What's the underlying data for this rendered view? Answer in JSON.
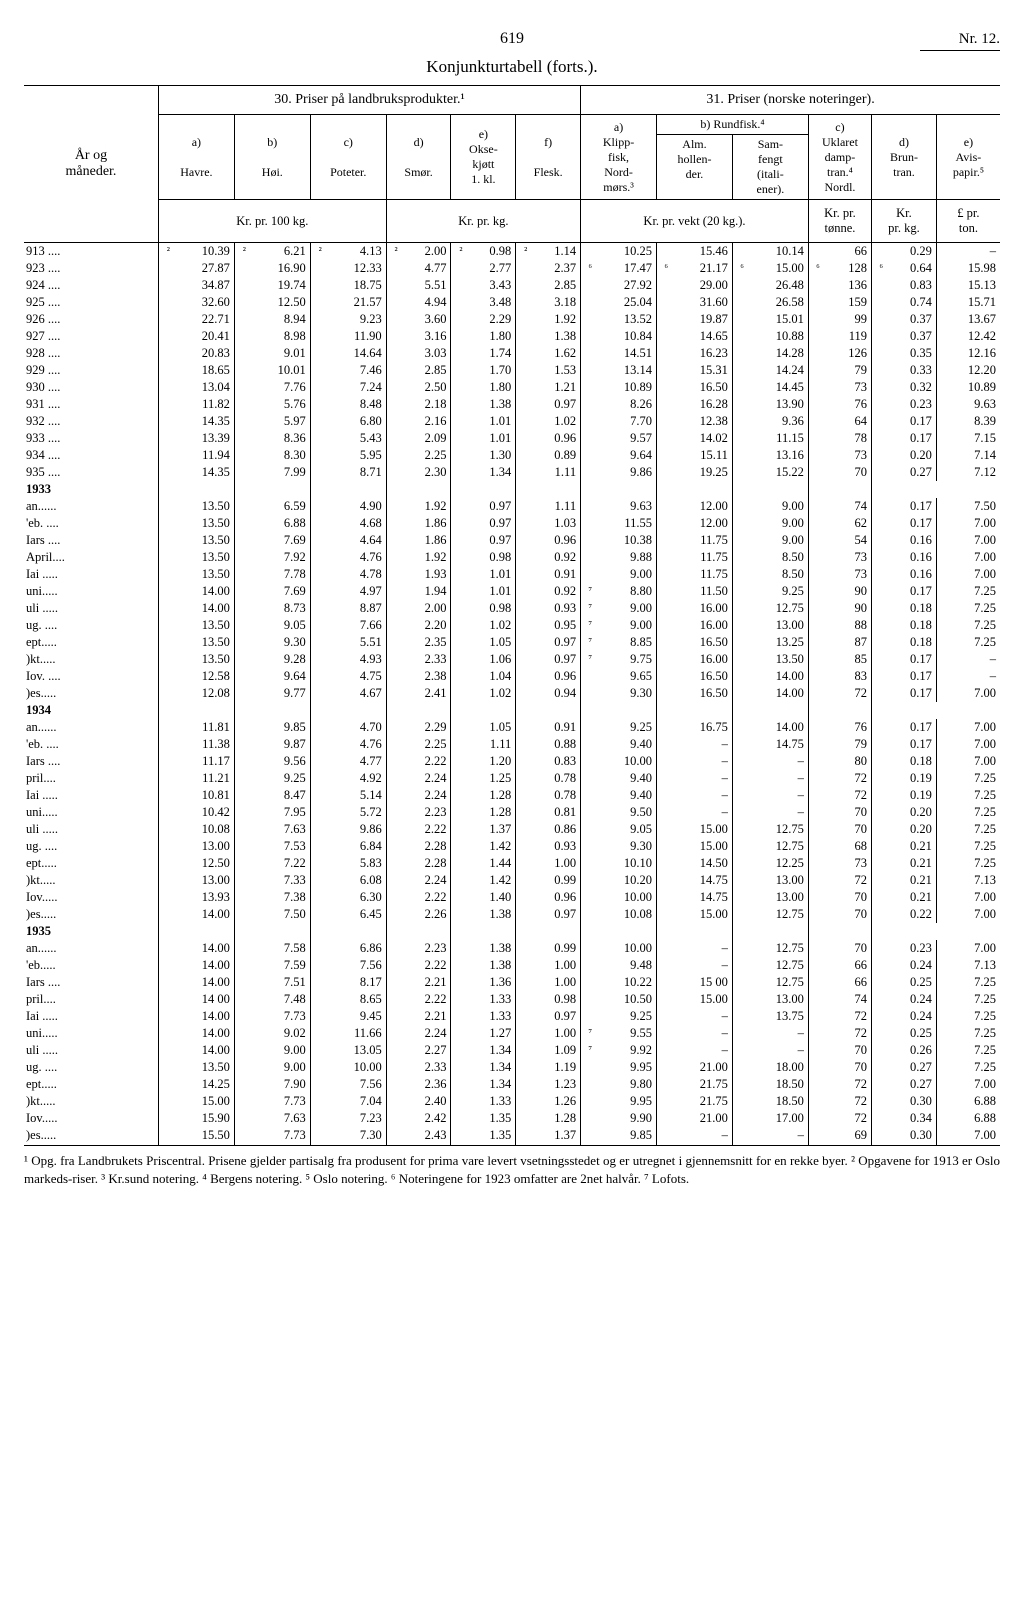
{
  "page": {
    "number": "619",
    "corner": "Nr. 12."
  },
  "subtitle": "Konjunkturtabell (forts.).",
  "section_headers": {
    "s30": "30. Priser på landbruksprodukter.¹",
    "s31": "31.  Priser (norske noteringer)."
  },
  "row_header": {
    "line1": "År og",
    "line2": "måneder."
  },
  "col_letters": {
    "a": "a)",
    "b": "b)",
    "c": "c)",
    "d": "d)",
    "e": "e)",
    "f": "f)",
    "a2": "a)",
    "b2": "b) Rundfisk.⁴",
    "c2": "c)",
    "d2": "d)",
    "e2": "e)"
  },
  "col_labels": {
    "havre": "Havre.",
    "hoi": "Høi.",
    "poteter": "Poteter.",
    "smor": "Smør.",
    "oksekjott": "Okse-\nkjøtt\n1. kl.",
    "flesk": "Flesk.",
    "klipp": "Klipp-\nfisk,\nNord-\nmørs.³",
    "alm": "Alm.\nhollen-\nder.",
    "sam": "Sam-\nfengt\n(itali-\nener).",
    "uklaret": "Uklaret\ndamp-\ntran.⁴\nNordl.",
    "brun": "Brun-\ntran.",
    "avis": "Avis-\npapir.⁵"
  },
  "unit_labels": {
    "u1": "Kr. pr. 100 kg.",
    "u2": "Kr. pr. kg.",
    "u3": "Kr. pr. vekt (20 kg.).",
    "u4": "Kr. pr.\ntønne.",
    "u5": "Kr.\npr. kg.",
    "u6": "£ pr.\nton."
  },
  "rows": [
    {
      "label": "913 ....",
      "p1": "²",
      "c1": "10.39",
      "p2": "²",
      "c2": "6.21",
      "p3": "²",
      "c3": "4.13",
      "p4": "²",
      "c4": "2.00",
      "p5": "²",
      "c5": "0.98",
      "p6": "²",
      "c6": "1.14",
      "p7": "",
      "c7": "10.25",
      "p8": "",
      "c8": "15.46",
      "p9": "",
      "c9": "10.14",
      "p10": "",
      "c10": "66",
      "p11": "",
      "c11": "0.29",
      "c12": "–"
    },
    {
      "label": "923 ....",
      "c1": "27.87",
      "c2": "16.90",
      "c3": "12.33",
      "c4": "4.77",
      "c5": "2.77",
      "c6": "2.37",
      "p7": "⁶",
      "c7": "17.47",
      "p8": "⁶",
      "c8": "21.17",
      "p9": "⁶",
      "c9": "15.00",
      "p10": "⁶",
      "c10": "128",
      "p11": "⁶",
      "c11": "0.64",
      "c12": "15.98"
    },
    {
      "label": "924 ....",
      "c1": "34.87",
      "c2": "19.74",
      "c3": "18.75",
      "c4": "5.51",
      "c5": "3.43",
      "c6": "2.85",
      "c7": "27.92",
      "c8": "29.00",
      "c9": "26.48",
      "c10": "136",
      "c11": "0.83",
      "c12": "15.13"
    },
    {
      "label": "925 ....",
      "c1": "32.60",
      "c2": "12.50",
      "c3": "21.57",
      "c4": "4.94",
      "c5": "3.48",
      "c6": "3.18",
      "c7": "25.04",
      "c8": "31.60",
      "c9": "26.58",
      "c10": "159",
      "c11": "0.74",
      "c12": "15.71"
    },
    {
      "label": "926 ....",
      "c1": "22.71",
      "c2": "8.94",
      "c3": "9.23",
      "c4": "3.60",
      "c5": "2.29",
      "c6": "1.92",
      "c7": "13.52",
      "c8": "19.87",
      "c9": "15.01",
      "c10": "99",
      "c11": "0.37",
      "c12": "13.67"
    },
    {
      "label": "927 ....",
      "c1": "20.41",
      "c2": "8.98",
      "c3": "11.90",
      "c4": "3.16",
      "c5": "1.80",
      "c6": "1.38",
      "c7": "10.84",
      "c8": "14.65",
      "c9": "10.88",
      "c10": "119",
      "c11": "0.37",
      "c12": "12.42"
    },
    {
      "label": "928 ....",
      "c1": "20.83",
      "c2": "9.01",
      "c3": "14.64",
      "c4": "3.03",
      "c5": "1.74",
      "c6": "1.62",
      "c7": "14.51",
      "c8": "16.23",
      "c9": "14.28",
      "c10": "126",
      "c11": "0.35",
      "c12": "12.16"
    },
    {
      "label": "929 ....",
      "c1": "18.65",
      "c2": "10.01",
      "c3": "7.46",
      "c4": "2.85",
      "c5": "1.70",
      "c6": "1.53",
      "c7": "13.14",
      "c8": "15.31",
      "c9": "14.24",
      "c10": "79",
      "c11": "0.33",
      "c12": "12.20"
    },
    {
      "label": "930 ....",
      "c1": "13.04",
      "c2": "7.76",
      "c3": "7.24",
      "c4": "2.50",
      "c5": "1.80",
      "c6": "1.21",
      "c7": "10.89",
      "c8": "16.50",
      "c9": "14.45",
      "c10": "73",
      "c11": "0.32",
      "c12": "10.89"
    },
    {
      "label": "931 ....",
      "c1": "11.82",
      "c2": "5.76",
      "c3": "8.48",
      "c4": "2.18",
      "c5": "1.38",
      "c6": "0.97",
      "c7": "8.26",
      "c8": "16.28",
      "c9": "13.90",
      "c10": "76",
      "c11": "0.23",
      "c12": "9.63"
    },
    {
      "label": "932 ....",
      "c1": "14.35",
      "c2": "5.97",
      "c3": "6.80",
      "c4": "2.16",
      "c5": "1.01",
      "c6": "1.02",
      "c7": "7.70",
      "c8": "12.38",
      "c9": "9.36",
      "c10": "64",
      "c11": "0.17",
      "c12": "8.39"
    },
    {
      "label": "933 ....",
      "c1": "13.39",
      "c2": "8.36",
      "c3": "5.43",
      "c4": "2.09",
      "c5": "1.01",
      "c6": "0.96",
      "c7": "9.57",
      "c8": "14.02",
      "c9": "11.15",
      "c10": "78",
      "c11": "0.17",
      "c12": "7.15"
    },
    {
      "label": "934 ....",
      "c1": "11.94",
      "c2": "8.30",
      "c3": "5.95",
      "c4": "2.25",
      "c5": "1.30",
      "c6": "0.89",
      "c7": "9.64",
      "c8": "15.11",
      "c9": "13.16",
      "c10": "73",
      "c11": "0.20",
      "c12": "7.14"
    },
    {
      "label": "935 ....",
      "c1": "14.35",
      "c2": "7.99",
      "c3": "8.71",
      "c4": "2.30",
      "c5": "1.34",
      "c6": "1.11",
      "c7": "9.86",
      "c8": "19.25",
      "c9": "15.22",
      "c10": "70",
      "c11": "0.27",
      "c12": "7.12"
    },
    {
      "label": "1933",
      "bold": true
    },
    {
      "label": "an......",
      "c1": "13.50",
      "c2": "6.59",
      "c3": "4.90",
      "c4": "1.92",
      "c5": "0.97",
      "c6": "1.11",
      "c7": "9.63",
      "c8": "12.00",
      "c9": "9.00",
      "c10": "74",
      "c11": "0.17",
      "c12": "7.50"
    },
    {
      "label": "'eb. ....",
      "c1": "13.50",
      "c2": "6.88",
      "c3": "4.68",
      "c4": "1.86",
      "c5": "0.97",
      "c6": "1.03",
      "c7": "11.55",
      "c8": "12.00",
      "c9": "9.00",
      "c10": "62",
      "c11": "0.17",
      "c12": "7.00"
    },
    {
      "label": "Iars ....",
      "c1": "13.50",
      "c2": "7.69",
      "c3": "4.64",
      "c4": "1.86",
      "c5": "0.97",
      "c6": "0.96",
      "c7": "10.38",
      "c8": "11.75",
      "c9": "9.00",
      "c10": "54",
      "c11": "0.16",
      "c12": "7.00"
    },
    {
      "label": "April....",
      "c1": "13.50",
      "c2": "7.92",
      "c3": "4.76",
      "c4": "1.92",
      "c5": "0.98",
      "c6": "0.92",
      "c7": "9.88",
      "c8": "11.75",
      "c9": "8.50",
      "c10": "73",
      "c11": "0.16",
      "c12": "7.00"
    },
    {
      "label": "Iai .....",
      "c1": "13.50",
      "c2": "7.78",
      "c3": "4.78",
      "c4": "1.93",
      "c5": "1.01",
      "c6": "0.91",
      "c7": "9.00",
      "c8": "11.75",
      "c9": "8.50",
      "c10": "73",
      "c11": "0.16",
      "c12": "7.00"
    },
    {
      "label": "uni.....",
      "c1": "14.00",
      "c2": "7.69",
      "c3": "4.97",
      "c4": "1.94",
      "c5": "1.01",
      "c6": "0.92",
      "p7": "⁷",
      "c7": "8.80",
      "c8": "11.50",
      "c9": "9.25",
      "c10": "90",
      "c11": "0.17",
      "c12": "7.25"
    },
    {
      "label": "uli .....",
      "c1": "14.00",
      "c2": "8.73",
      "c3": "8.87",
      "c4": "2.00",
      "c5": "0.98",
      "c6": "0.93",
      "p7": "⁷",
      "c7": "9.00",
      "c8": "16.00",
      "c9": "12.75",
      "c10": "90",
      "c11": "0.18",
      "c12": "7.25"
    },
    {
      "label": "ug. ....",
      "c1": "13.50",
      "c2": "9.05",
      "c3": "7.66",
      "c4": "2.20",
      "c5": "1.02",
      "c6": "0.95",
      "p7": "⁷",
      "c7": "9.00",
      "c8": "16.00",
      "c9": "13.00",
      "c10": "88",
      "c11": "0.18",
      "c12": "7.25"
    },
    {
      "label": "ept.....",
      "c1": "13.50",
      "c2": "9.30",
      "c3": "5.51",
      "c4": "2.35",
      "c5": "1.05",
      "c6": "0.97",
      "p7": "⁷",
      "c7": "8.85",
      "c8": "16.50",
      "c9": "13.25",
      "c10": "87",
      "c11": "0.18",
      "c12": "7.25"
    },
    {
      "label": ")kt.....",
      "c1": "13.50",
      "c2": "9.28",
      "c3": "4.93",
      "c4": "2.33",
      "c5": "1.06",
      "c6": "0.97",
      "p7": "⁷",
      "c7": "9.75",
      "c8": "16.00",
      "c9": "13.50",
      "c10": "85",
      "c11": "0.17",
      "c12": "–"
    },
    {
      "label": "Iov. ....",
      "c1": "12.58",
      "c2": "9.64",
      "c3": "4.75",
      "c4": "2.38",
      "c5": "1.04",
      "c6": "0.96",
      "c7": "9.65",
      "c8": "16.50",
      "c9": "14.00",
      "c10": "83",
      "c11": "0.17",
      "c12": "–"
    },
    {
      "label": ")es.....",
      "c1": "12.08",
      "c2": "9.77",
      "c3": "4.67",
      "c4": "2.41",
      "c5": "1.02",
      "c6": "0.94",
      "c7": "9.30",
      "c8": "16.50",
      "c9": "14.00",
      "c10": "72",
      "c11": "0.17",
      "c12": "7.00"
    },
    {
      "label": "1934",
      "bold": true
    },
    {
      "label": "an......",
      "c1": "11.81",
      "c2": "9.85",
      "c3": "4.70",
      "c4": "2.29",
      "c5": "1.05",
      "c6": "0.91",
      "c7": "9.25",
      "c8": "16.75",
      "c9": "14.00",
      "c10": "76",
      "c11": "0.17",
      "c12": "7.00"
    },
    {
      "label": "'eb. ....",
      "c1": "11.38",
      "c2": "9.87",
      "c3": "4.76",
      "c4": "2.25",
      "c5": "1.11",
      "c6": "0.88",
      "c7": "9.40",
      "c8": "–",
      "c9": "14.75",
      "c10": "79",
      "c11": "0.17",
      "c12": "7.00"
    },
    {
      "label": "Iars ....",
      "c1": "11.17",
      "c2": "9.56",
      "c3": "4.77",
      "c4": "2.22",
      "c5": "1.20",
      "c6": "0.83",
      "c7": "10.00",
      "c8": "–",
      "c9": "–",
      "c10": "80",
      "c11": "0.18",
      "c12": "7.00"
    },
    {
      "label": "pril....",
      "c1": "11.21",
      "c2": "9.25",
      "c3": "4.92",
      "c4": "2.24",
      "c5": "1.25",
      "c6": "0.78",
      "c7": "9.40",
      "c8": "–",
      "c9": "–",
      "c10": "72",
      "c11": "0.19",
      "c12": "7.25"
    },
    {
      "label": "Iai .....",
      "c1": "10.81",
      "c2": "8.47",
      "c3": "5.14",
      "c4": "2.24",
      "c5": "1.28",
      "c6": "0.78",
      "c7": "9.40",
      "c8": "–",
      "c9": "–",
      "c10": "72",
      "c11": "0.19",
      "c12": "7.25"
    },
    {
      "label": "uni.....",
      "c1": "10.42",
      "c2": "7.95",
      "c3": "5.72",
      "c4": "2.23",
      "c5": "1.28",
      "c6": "0.81",
      "c7": "9.50",
      "c8": "–",
      "c9": "–",
      "c10": "70",
      "c11": "0.20",
      "c12": "7.25"
    },
    {
      "label": "uli .....",
      "c1": "10.08",
      "c2": "7.63",
      "c3": "9.86",
      "c4": "2.22",
      "c5": "1.37",
      "c6": "0.86",
      "c7": "9.05",
      "c8": "15.00",
      "c9": "12.75",
      "c10": "70",
      "c11": "0.20",
      "c12": "7.25"
    },
    {
      "label": "ug. ....",
      "c1": "13.00",
      "c2": "7.53",
      "c3": "6.84",
      "c4": "2.28",
      "c5": "1.42",
      "c6": "0.93",
      "c7": "9.30",
      "c8": "15.00",
      "c9": "12.75",
      "c10": "68",
      "c11": "0.21",
      "c12": "7.25"
    },
    {
      "label": "ept.....",
      "c1": "12.50",
      "c2": "7.22",
      "c3": "5.83",
      "c4": "2.28",
      "c5": "1.44",
      "c6": "1.00",
      "c7": "10.10",
      "c8": "14.50",
      "c9": "12.25",
      "c10": "73",
      "c11": "0.21",
      "c12": "7.25"
    },
    {
      "label": ")kt.....",
      "c1": "13.00",
      "c2": "7.33",
      "c3": "6.08",
      "c4": "2.24",
      "c5": "1.42",
      "c6": "0.99",
      "c7": "10.20",
      "c8": "14.75",
      "c9": "13.00",
      "c10": "72",
      "c11": "0.21",
      "c12": "7.13"
    },
    {
      "label": "Iov.....",
      "c1": "13.93",
      "c2": "7.38",
      "c3": "6.30",
      "c4": "2.22",
      "c5": "1.40",
      "c6": "0.96",
      "c7": "10.00",
      "c8": "14.75",
      "c9": "13.00",
      "c10": "70",
      "c11": "0.21",
      "c12": "7.00"
    },
    {
      "label": ")es.....",
      "c1": "14.00",
      "c2": "7.50",
      "c3": "6.45",
      "c4": "2.26",
      "c5": "1.38",
      "c6": "0.97",
      "c7": "10.08",
      "c8": "15.00",
      "c9": "12.75",
      "c10": "70",
      "c11": "0.22",
      "c12": "7.00"
    },
    {
      "label": "1935",
      "bold": true
    },
    {
      "label": "an......",
      "c1": "14.00",
      "c2": "7.58",
      "c3": "6.86",
      "c4": "2.23",
      "c5": "1.38",
      "c6": "0.99",
      "c7": "10.00",
      "c8": "–",
      "c9": "12.75",
      "c10": "70",
      "c11": "0.23",
      "c12": "7.00"
    },
    {
      "label": "'eb.....",
      "c1": "14.00",
      "c2": "7.59",
      "c3": "7.56",
      "c4": "2.22",
      "c5": "1.38",
      "c6": "1.00",
      "c7": "9.48",
      "c8": "–",
      "c9": "12.75",
      "c10": "66",
      "c11": "0.24",
      "c12": "7.13"
    },
    {
      "label": "Iars ....",
      "c1": "14.00",
      "c2": "7.51",
      "c3": "8.17",
      "c4": "2.21",
      "c5": "1.36",
      "c6": "1.00",
      "c7": "10.22",
      "c8": "15 00",
      "c9": "12.75",
      "c10": "66",
      "c11": "0.25",
      "c12": "7.25"
    },
    {
      "label": "pril....",
      "c1": "14 00",
      "c2": "7.48",
      "c3": "8.65",
      "c4": "2.22",
      "c5": "1.33",
      "c6": "0.98",
      "c7": "10.50",
      "c8": "15.00",
      "c9": "13.00",
      "c10": "74",
      "c11": "0.24",
      "c12": "7.25"
    },
    {
      "label": "Iai .....",
      "c1": "14.00",
      "c2": "7.73",
      "c3": "9.45",
      "c4": "2.21",
      "c5": "1.33",
      "c6": "0.97",
      "c7": "9.25",
      "c8": "–",
      "c9": "13.75",
      "c10": "72",
      "c11": "0.24",
      "c12": "7.25"
    },
    {
      "label": "uni.....",
      "c1": "14.00",
      "c2": "9.02",
      "c3": "11.66",
      "c4": "2.24",
      "c5": "1.27",
      "c6": "1.00",
      "p7": "⁷",
      "c7": "9.55",
      "c8": "–",
      "c9": "–",
      "c10": "72",
      "c11": "0.25",
      "c12": "7.25"
    },
    {
      "label": "uli .....",
      "c1": "14.00",
      "c2": "9.00",
      "c3": "13.05",
      "c4": "2.27",
      "c5": "1.34",
      "c6": "1.09",
      "p7": "⁷",
      "c7": "9.92",
      "c8": "–",
      "c9": "–",
      "c10": "70",
      "c11": "0.26",
      "c12": "7.25"
    },
    {
      "label": "ug. ....",
      "c1": "13.50",
      "c2": "9.00",
      "c3": "10.00",
      "c4": "2.33",
      "c5": "1.34",
      "c6": "1.19",
      "c7": "9.95",
      "c8": "21.00",
      "c9": "18.00",
      "c10": "70",
      "c11": "0.27",
      "c12": "7.25"
    },
    {
      "label": "ept.....",
      "c1": "14.25",
      "c2": "7.90",
      "c3": "7.56",
      "c4": "2.36",
      "c5": "1.34",
      "c6": "1.23",
      "c7": "9.80",
      "c8": "21.75",
      "c9": "18.50",
      "c10": "72",
      "c11": "0.27",
      "c12": "7.00"
    },
    {
      "label": ")kt.....",
      "c1": "15.00",
      "c2": "7.73",
      "c3": "7.04",
      "c4": "2.40",
      "c5": "1.33",
      "c6": "1.26",
      "c7": "9.95",
      "c8": "21.75",
      "c9": "18.50",
      "c10": "72",
      "c11": "0.30",
      "c12": "6.88"
    },
    {
      "label": "Iov.....",
      "c1": "15.90",
      "c2": "7.63",
      "c3": "7.23",
      "c4": "2.42",
      "c5": "1.35",
      "c6": "1.28",
      "c7": "9.90",
      "c8": "21.00",
      "c9": "17.00",
      "c10": "72",
      "c11": "0.34",
      "c12": "6.88"
    },
    {
      "label": ")es.....",
      "c1": "15.50",
      "c2": "7.73",
      "c3": "7.30",
      "c4": "2.43",
      "c5": "1.35",
      "c6": "1.37",
      "c7": "9.85",
      "c8": "–",
      "c9": "–",
      "c10": "69",
      "c11": "0.30",
      "c12": "7.00",
      "last": true
    }
  ],
  "footnote": "¹ Opg. fra Landbrukets Priscentral.  Prisene gjelder partisalg fra produsent for prima vare levert vsetningsstedet og er utregnet i gjennemsnitt for en rekke byer.  ² Opgavene for 1913 er Oslo markeds-riser.  ³ Kr.sund notering.  ⁴ Bergens notering.  ⁵ Oslo notering.  ⁶ Noteringene for 1923 omfatter are 2net halvår.  ⁷ Lofots."
}
